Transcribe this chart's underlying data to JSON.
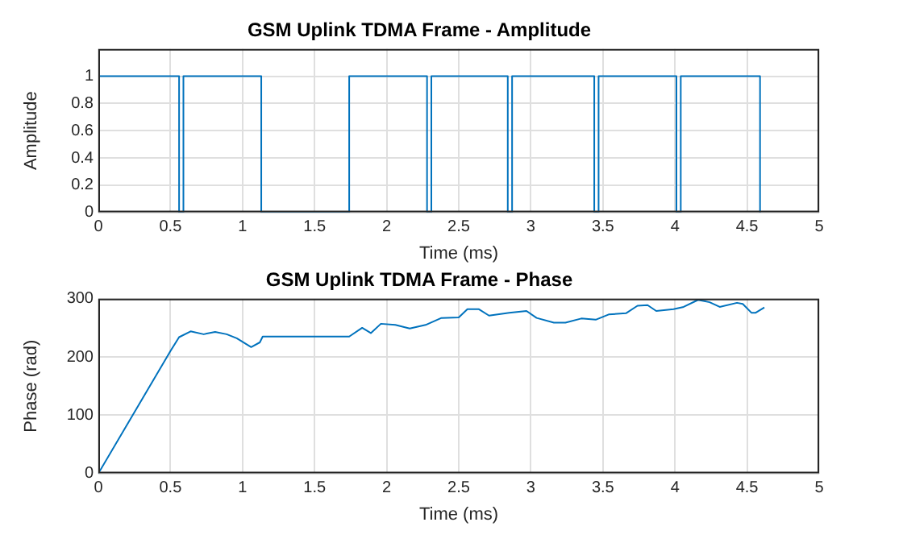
{
  "chart_data": [
    {
      "type": "line",
      "title": "GSM Uplink TDMA Frame - Amplitude",
      "xlabel": "Time (ms)",
      "ylabel": "Amplitude",
      "xlim": [
        0,
        5
      ],
      "xticks": [
        0,
        0.5,
        1,
        1.5,
        2,
        2.5,
        3,
        3.5,
        4,
        4.5,
        5
      ],
      "ylim": [
        0,
        1.2
      ],
      "yticks": [
        0,
        0.2,
        0.4,
        0.6,
        0.8,
        1
      ],
      "grid": true,
      "series": [
        {
          "color": "#0072bd",
          "x": [
            0,
            0.56,
            0.56,
            0.59,
            0.59,
            1.13,
            1.13,
            1.74,
            1.74,
            2.28,
            2.28,
            2.31,
            2.31,
            2.84,
            2.84,
            2.87,
            2.87,
            3.44,
            3.44,
            3.47,
            3.47,
            4.01,
            4.01,
            4.04,
            4.04,
            4.59,
            4.59
          ],
          "values": [
            1,
            1,
            0,
            0,
            1,
            1,
            0,
            0,
            1,
            1,
            0,
            0,
            1,
            1,
            0,
            0,
            1,
            1,
            0,
            0,
            1,
            1,
            0,
            0,
            1,
            1,
            0
          ]
        }
      ]
    },
    {
      "type": "line",
      "title": "GSM Uplink TDMA Frame - Phase",
      "xlabel": "Time (ms)",
      "ylabel": "Phase (rad)",
      "xlim": [
        0,
        5
      ],
      "xticks": [
        0,
        0.5,
        1,
        1.5,
        2,
        2.5,
        3,
        3.5,
        4,
        4.5,
        5
      ],
      "ylim": [
        0,
        300
      ],
      "yticks": [
        0,
        100,
        200,
        300
      ],
      "grid": true,
      "series": [
        {
          "color": "#0072bd",
          "x": [
            0,
            0.5,
            0.56,
            0.64,
            0.73,
            0.81,
            0.89,
            0.96,
            1.06,
            1.12,
            1.14,
            1.74,
            1.83,
            1.89,
            1.96,
            2.06,
            2.16,
            2.27,
            2.38,
            2.5,
            2.56,
            2.64,
            2.71,
            2.85,
            2.97,
            3.04,
            3.16,
            3.24,
            3.35,
            3.45,
            3.54,
            3.66,
            3.74,
            3.81,
            3.87,
            3.99,
            4.06,
            4.16,
            4.24,
            4.31,
            4.43,
            4.47,
            4.53,
            4.56,
            4.62
          ],
          "values": [
            0,
            210,
            234,
            244,
            239,
            243,
            239,
            232,
            217,
            225,
            235,
            235,
            250,
            241,
            257,
            255,
            249,
            255,
            267,
            268,
            282,
            282,
            271,
            276,
            279,
            267,
            259,
            259,
            266,
            264,
            273,
            275,
            288,
            289,
            279,
            282,
            286,
            298,
            294,
            286,
            293,
            291,
            276,
            276,
            285
          ]
        }
      ]
    }
  ]
}
